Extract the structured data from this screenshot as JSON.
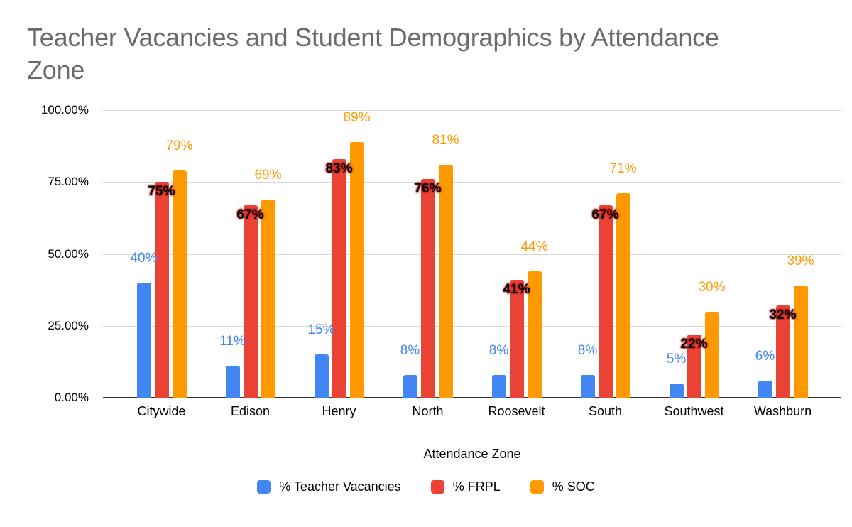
{
  "page": {
    "background": "#ffffff"
  },
  "chart": {
    "title_line1": "Teacher Vacancies and Student Demographics by Attendance",
    "title_line2": "Zone",
    "x_axis_title": "Attendance Zone"
  },
  "chart_data": {
    "type": "bar",
    "title": "Teacher Vacancies and Student Demographics by Attendance Zone",
    "xlabel": "Attendance Zone",
    "ylabel": "",
    "ylim": [
      0,
      100
    ],
    "grid": true,
    "legend_position": "bottom",
    "title_color": "#6b6b6b",
    "gridline_color": "#d9d9d9",
    "axis_line_color": "#333333",
    "yticks": [
      {
        "value": 0,
        "label": "0.00%"
      },
      {
        "value": 25,
        "label": "25.00%"
      },
      {
        "value": 50,
        "label": "50.00%"
      },
      {
        "value": 75,
        "label": "75.00%"
      },
      {
        "value": 100,
        "label": "100.00%"
      }
    ],
    "categories": [
      "Citywide",
      "Edison",
      "Henry",
      "North",
      "Roosevelt",
      "South",
      "Southwest",
      "Washburn"
    ],
    "series": [
      {
        "key": "teacher-vacancies",
        "name": "% Teacher Vacancies",
        "color": "#4285F4",
        "label_color": "#4285F4",
        "label_placement": "above",
        "label_bold": false,
        "values": [
          40,
          11,
          15,
          8,
          8,
          8,
          5,
          6
        ],
        "labels": [
          "40%",
          "11%",
          "15%",
          "8%",
          "8%",
          "8%",
          "5%",
          "6%"
        ]
      },
      {
        "key": "frpl",
        "name": "% FRPL",
        "color": "#EA4335",
        "label_color": "#000000",
        "label_glow": "#B31412",
        "label_placement": "inside-top",
        "label_bold": true,
        "values": [
          75,
          67,
          83,
          76,
          41,
          67,
          22,
          32
        ],
        "labels": [
          "75%",
          "67%",
          "83%",
          "76%",
          "41%",
          "67%",
          "22%",
          "32%"
        ]
      },
      {
        "key": "soc",
        "name": "% SOC",
        "color": "#FF9900",
        "label_color": "#FF9900",
        "label_placement": "above",
        "label_bold": false,
        "values": [
          79,
          69,
          89,
          81,
          44,
          71,
          30,
          39
        ],
        "labels": [
          "79%",
          "69%",
          "89%",
          "81%",
          "44%",
          "71%",
          "30%",
          "39%"
        ]
      }
    ]
  }
}
